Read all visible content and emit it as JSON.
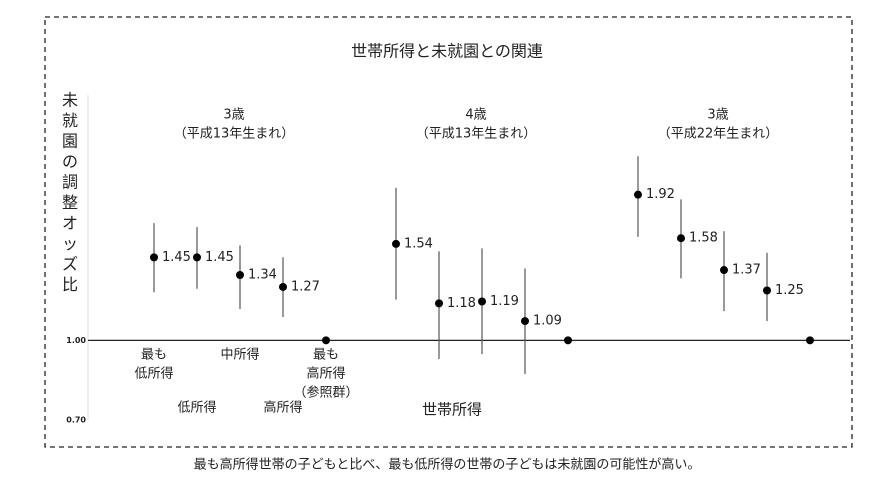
{
  "chart_data": {
    "type": "errorbar",
    "title": "世帯所得と未就園との関連",
    "y_label": [
      "未",
      "就",
      "園",
      "の",
      "調",
      "整",
      "オ",
      "ッ",
      "ズ",
      "比"
    ],
    "x_label": "世帯所得",
    "caption": "最も高所得世帯の子どもと比べ、最も低所得の世帯の子どもは未就園の可能性が高い。",
    "log_scale": true,
    "ylim": [
      0.7,
      3
    ],
    "yticks": [
      {
        "value": 1,
        "label": "1.00"
      },
      {
        "value": 0.7,
        "label": "0.70"
      }
    ],
    "categories": [
      [
        "最も",
        "低所得"
      ],
      [
        "低所得"
      ],
      [
        "中所得"
      ],
      [
        "高所得"
      ],
      [
        "最も",
        "高所得",
        "（参照群）"
      ]
    ],
    "color": "#000000",
    "series": [
      {
        "name": [
          "3歳",
          "（平成13年生まれ）"
        ],
        "values": [
          1.45,
          1.45,
          1.34,
          1.27,
          1.0
        ],
        "lower": [
          1.24,
          1.26,
          1.15,
          1.11,
          null
        ],
        "upper": [
          1.69,
          1.66,
          1.53,
          1.45,
          null
        ],
        "value_labels": [
          "1.45",
          "1.45",
          "1.34",
          "1.27",
          null
        ]
      },
      {
        "name": [
          "4歳",
          "（平成13年生まれ）"
        ],
        "values": [
          1.54,
          1.18,
          1.19,
          1.09,
          1.0
        ],
        "lower": [
          1.2,
          0.92,
          0.94,
          0.86,
          null
        ],
        "upper": [
          1.98,
          1.49,
          1.51,
          1.38,
          null
        ],
        "value_labels": [
          "1.54",
          "1.18",
          "1.19",
          "1.09",
          null
        ]
      },
      {
        "name": [
          "3歳",
          "（平成22年生まれ）"
        ],
        "values": [
          1.92,
          1.58,
          1.37,
          1.25,
          1.0
        ],
        "lower": [
          1.59,
          1.32,
          1.14,
          1.09,
          null
        ],
        "upper": [
          2.28,
          1.88,
          1.63,
          1.48,
          null
        ],
        "value_labels": [
          "1.92",
          "1.58",
          "1.37",
          "1.25",
          null
        ]
      }
    ]
  }
}
